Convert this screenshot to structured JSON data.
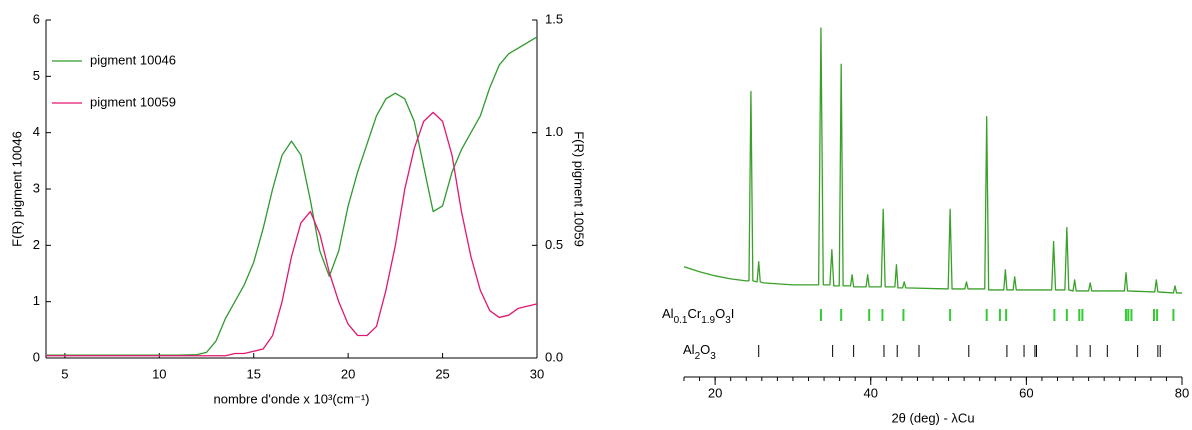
{
  "chart_data": [
    {
      "type": "line",
      "xlabel": "nombre d'onde x 10³(cm⁻¹)",
      "ylabel": "F(R) pigment 10046",
      "y2label": "F(R) pigment 10059",
      "xlim": [
        4,
        30
      ],
      "xticks": [
        5,
        10,
        15,
        20,
        25,
        30
      ],
      "ylim": [
        0,
        6
      ],
      "yticks": [
        0,
        1,
        2,
        3,
        4,
        5,
        6
      ],
      "y2lim": [
        0,
        1.5
      ],
      "y2ticks": [
        {
          "value": 0,
          "label": "0.0"
        },
        0.5,
        {
          "value": 1,
          "label": "1.0"
        },
        1.5
      ],
      "legend": "upper left",
      "x": [
        4,
        5,
        6,
        7,
        8,
        9,
        10,
        11,
        12,
        12.5,
        13,
        13.5,
        14,
        14.5,
        15,
        15.5,
        16,
        16.5,
        17,
        17.5,
        18,
        18.5,
        19,
        19.5,
        20,
        20.5,
        21,
        21.5,
        22,
        22.5,
        23,
        23.5,
        24,
        24.5,
        25,
        25.5,
        26,
        26.5,
        27,
        27.5,
        28,
        28.5,
        29,
        29.5,
        30
      ],
      "series": [
        {
          "name": "pigment 10046",
          "color": "#2e9a2e",
          "values": [
            0.05,
            0.05,
            0.05,
            0.05,
            0.05,
            0.05,
            0.05,
            0.05,
            0.06,
            0.1,
            0.3,
            0.7,
            1.0,
            1.3,
            1.7,
            2.3,
            3.0,
            3.6,
            3.85,
            3.6,
            2.8,
            1.9,
            1.45,
            1.9,
            2.7,
            3.3,
            3.8,
            4.3,
            4.6,
            4.7,
            4.6,
            4.2,
            3.4,
            2.6,
            2.7,
            3.3,
            3.7,
            4.0,
            4.3,
            4.8,
            5.2,
            5.4,
            5.5,
            5.6,
            5.7
          ]
        },
        {
          "name": "pigment 10059",
          "color": "#e0186e",
          "axis": "y2",
          "values": [
            0.01,
            0.01,
            0.01,
            0.01,
            0.01,
            0.01,
            0.01,
            0.01,
            0.01,
            0.01,
            0.01,
            0.01,
            0.02,
            0.02,
            0.03,
            0.04,
            0.1,
            0.25,
            0.45,
            0.6,
            0.65,
            0.55,
            0.38,
            0.25,
            0.15,
            0.1,
            0.1,
            0.14,
            0.3,
            0.5,
            0.75,
            0.93,
            1.05,
            1.09,
            1.05,
            0.9,
            0.65,
            0.45,
            0.3,
            0.21,
            0.18,
            0.19,
            0.22,
            0.23,
            0.24
          ]
        }
      ]
    },
    {
      "type": "line",
      "xlabel": "2θ (deg) - λCu",
      "xlim": [
        16,
        80
      ],
      "xticks": [
        20,
        40,
        60,
        80
      ],
      "x": [
        16,
        18,
        20,
        22,
        24,
        24.35,
        24.6,
        24.85,
        25.4,
        25.6,
        25.8,
        26.2,
        30,
        33.3,
        33.6,
        33.9,
        34.75,
        35.0,
        35.25,
        35.95,
        36.2,
        36.45,
        37.4,
        37.6,
        37.8,
        39.4,
        39.6,
        39.8,
        41.35,
        41.6,
        41.85,
        43.1,
        43.3,
        43.5,
        44.1,
        44.3,
        44.5,
        49.95,
        50.2,
        50.45,
        52.1,
        52.3,
        52.5,
        54.65,
        54.9,
        55.15,
        57.1,
        57.3,
        57.5,
        58.3,
        58.5,
        58.7,
        63.25,
        63.5,
        63.75,
        64.95,
        65.2,
        65.45,
        66.0,
        66.2,
        66.4,
        68.0,
        68.2,
        68.4,
        72.6,
        72.8,
        73.0,
        76.5,
        76.7,
        76.9,
        78.9,
        79.1,
        79.3,
        80
      ],
      "series": [
        {
          "color": "#3aa02a",
          "values": [
            33,
            28,
            24,
            21,
            19,
            19,
            207,
            19,
            18,
            38,
            18,
            17,
            15,
            15,
            270,
            15,
            15,
            50,
            14,
            14,
            234,
            14,
            14,
            25,
            13,
            13,
            25,
            13,
            13,
            90,
            13,
            13,
            35,
            12,
            12,
            18,
            12,
            11,
            90,
            11,
            11,
            18,
            11,
            11,
            182,
            10,
            10,
            30,
            10,
            10,
            23,
            10,
            10,
            58,
            10,
            10,
            72,
            10,
            9,
            20,
            9,
            9,
            17,
            9,
            9,
            27,
            9,
            8,
            20,
            8,
            7,
            14,
            7,
            7
          ]
        }
      ],
      "reflections": [
        {
          "name": "Al0.1Cr1.9O3I",
          "color": "#33cc33",
          "positions": [
            33.6,
            36.2,
            39.8,
            41.5,
            44.2,
            50.2,
            54.9,
            56.6,
            57.4,
            63.6,
            65.2,
            66.8,
            67.2,
            72.8,
            73.1,
            73.5,
            76.4,
            76.8,
            78.9
          ]
        },
        {
          "name": "Al2O3",
          "color": "#000000",
          "positions": [
            25.6,
            35.1,
            37.8,
            41.7,
            43.4,
            46.2,
            52.6,
            57.5,
            59.7,
            61.1,
            61.3,
            66.5,
            68.2,
            70.4,
            74.3,
            76.9,
            77.2
          ]
        }
      ]
    }
  ]
}
